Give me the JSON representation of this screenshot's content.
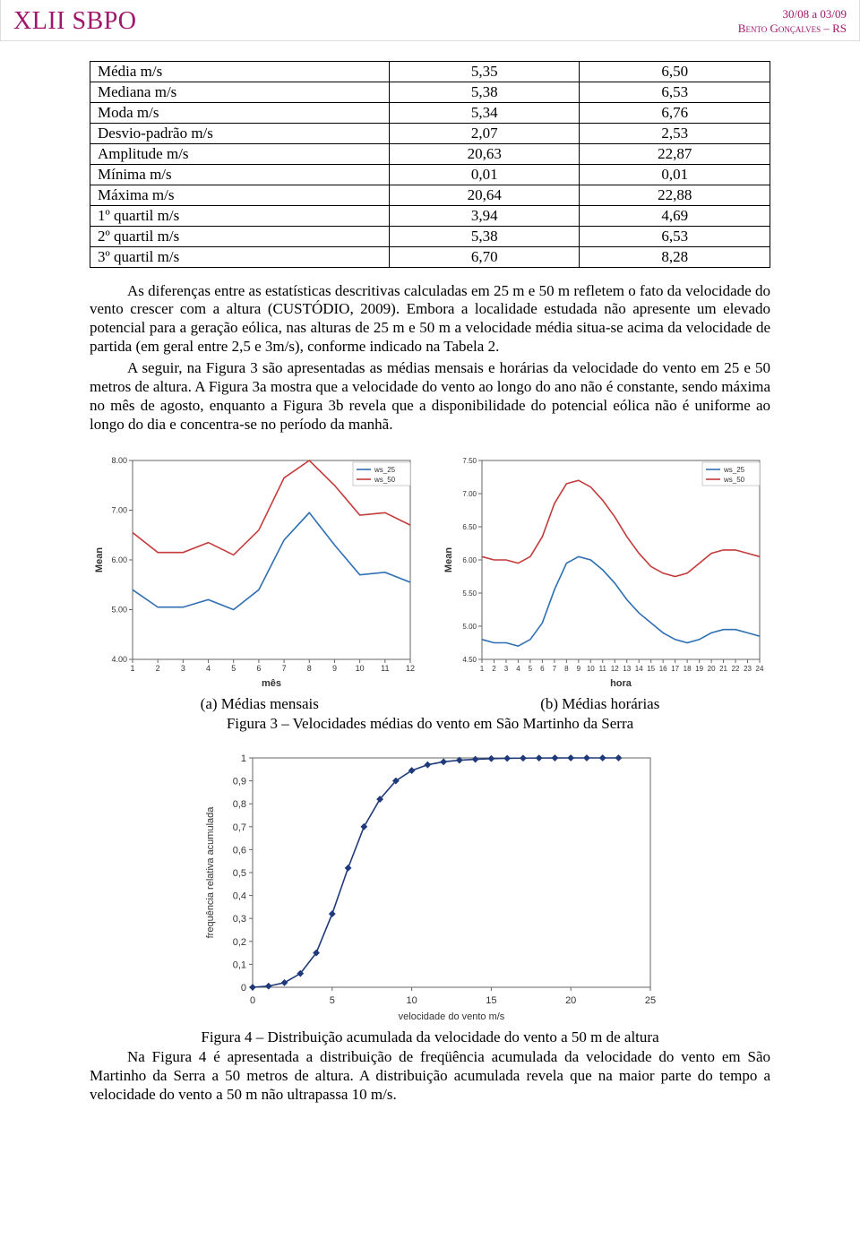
{
  "header": {
    "logo": "XLII SBPO",
    "dates": "30/08 a 03/09",
    "location": "Bento Gonçalves – RS"
  },
  "table": {
    "rows": [
      {
        "label": "Média m/s",
        "v1": "5,35",
        "v2": "6,50"
      },
      {
        "label": "Mediana m/s",
        "v1": "5,38",
        "v2": "6,53"
      },
      {
        "label": "Moda m/s",
        "v1": "5,34",
        "v2": "6,76"
      },
      {
        "label": "Desvio-padrão m/s",
        "v1": "2,07",
        "v2": "2,53"
      },
      {
        "label": "Amplitude m/s",
        "v1": "20,63",
        "v2": "22,87"
      },
      {
        "label": "Mínima m/s",
        "v1": "0,01",
        "v2": "0,01"
      },
      {
        "label": "Máxima m/s",
        "v1": "20,64",
        "v2": "22,88"
      },
      {
        "label": "1º quartil m/s",
        "v1": "3,94",
        "v2": "4,69"
      },
      {
        "label": "2º quartil m/s",
        "v1": "5,38",
        "v2": "6,53"
      },
      {
        "label": "3º quartil m/s",
        "v1": "6,70",
        "v2": "8,28"
      }
    ]
  },
  "paragraphs": {
    "p1": "As diferenças entre as estatísticas descritivas calculadas em 25 m e 50 m refletem o fato da velocidade do vento crescer com a altura (CUSTÓDIO, 2009). Embora a localidade estudada não apresente um elevado potencial para a geração eólica, nas alturas de 25 m e 50 m a velocidade média situa-se acima da velocidade de partida (em geral entre 2,5 e 3m/s), conforme indicado na Tabela 2.",
    "p2": "A seguir, na Figura 3 são apresentadas as médias mensais e horárias da velocidade do vento em 25 e 50 metros de altura. A Figura 3a mostra que a velocidade do vento ao longo do ano não é constante, sendo máxima no mês de agosto, enquanto a Figura 3b revela que a disponibilidade do potencial eólica não é uniforme ao longo do dia e concentra-se no período da manhã."
  },
  "chart_a": {
    "type": "line",
    "legend": [
      "ws_25",
      "ws_50"
    ],
    "xlabel": "mês",
    "ylabel": "Mean",
    "xlim": [
      1,
      12
    ],
    "ylim": [
      4.0,
      8.0
    ],
    "yticks": [
      4.0,
      5.0,
      6.0,
      7.0,
      8.0
    ],
    "xticks": [
      1,
      2,
      3,
      4,
      5,
      6,
      7,
      8,
      9,
      10,
      11,
      12
    ],
    "series1_color": "#2e6fb3",
    "series2_color": "#c43b3b",
    "background": "#ffffff",
    "border_color": "#666666",
    "axis_font": 9,
    "series1": [
      5.4,
      5.05,
      5.05,
      5.2,
      5.0,
      5.4,
      6.4,
      6.95,
      6.3,
      5.7,
      5.75,
      5.55
    ],
    "series2": [
      6.55,
      6.15,
      6.15,
      6.35,
      6.1,
      6.6,
      7.65,
      8.0,
      7.5,
      6.9,
      6.95,
      6.7
    ]
  },
  "chart_b": {
    "type": "line",
    "legend": [
      "ws_25",
      "ws_50"
    ],
    "xlabel": "hora",
    "ylabel": "Mean",
    "xlim": [
      1,
      24
    ],
    "ylim": [
      4.5,
      7.5
    ],
    "yticks": [
      4.5,
      5.0,
      5.5,
      6.0,
      6.5,
      7.0,
      7.5
    ],
    "xticks": [
      1,
      2,
      3,
      4,
      5,
      6,
      7,
      8,
      9,
      10,
      11,
      12,
      13,
      14,
      15,
      16,
      17,
      18,
      19,
      20,
      21,
      22,
      23,
      24
    ],
    "series1_color": "#2e6fb3",
    "series2_color": "#c43b3b",
    "background": "#ffffff",
    "border_color": "#666666",
    "axis_font": 8,
    "series1": [
      4.8,
      4.75,
      4.75,
      4.7,
      4.8,
      5.05,
      5.55,
      5.95,
      6.05,
      6.0,
      5.85,
      5.65,
      5.4,
      5.2,
      5.05,
      4.9,
      4.8,
      4.75,
      4.8,
      4.9,
      4.95,
      4.95,
      4.9,
      4.85
    ],
    "series2": [
      6.05,
      6.0,
      6.0,
      5.95,
      6.05,
      6.35,
      6.85,
      7.15,
      7.2,
      7.1,
      6.9,
      6.65,
      6.35,
      6.1,
      5.9,
      5.8,
      5.75,
      5.8,
      5.95,
      6.1,
      6.15,
      6.15,
      6.1,
      6.05
    ]
  },
  "captions": {
    "a": "(a) Médias mensais",
    "b": "(b) Médias horárias",
    "fig3": "Figura 3 – Velocidades médias do vento em São Martinho da Serra"
  },
  "chart4": {
    "type": "line",
    "xlabel": "velocidade do vento m/s",
    "ylabel": "frequência relativa acumulada",
    "xlim": [
      0,
      25
    ],
    "ylim": [
      0,
      1
    ],
    "xticks": [
      0,
      5,
      10,
      15,
      20,
      25
    ],
    "yticks": [
      0,
      0.1,
      0.2,
      0.3,
      0.4,
      0.5,
      0.6,
      0.7,
      0.8,
      0.9,
      1
    ],
    "ytick_labels": [
      "0",
      "0,1",
      "0,2",
      "0,3",
      "0,4",
      "0,5",
      "0,6",
      "0,7",
      "0,8",
      "0,9",
      "1"
    ],
    "line_color": "#1f3a7a",
    "marker": "diamond",
    "background": "#ffffff",
    "border_color": "#666666",
    "axis_font": 11,
    "x": [
      0,
      1,
      2,
      3,
      4,
      5,
      6,
      7,
      8,
      9,
      10,
      11,
      12,
      13,
      14,
      15,
      16,
      17,
      18,
      19,
      20,
      21,
      22,
      23
    ],
    "y": [
      0.0,
      0.005,
      0.02,
      0.06,
      0.15,
      0.32,
      0.52,
      0.7,
      0.82,
      0.9,
      0.945,
      0.97,
      0.983,
      0.99,
      0.994,
      0.997,
      0.998,
      0.999,
      0.9995,
      0.9998,
      1.0,
      1.0,
      1.0,
      1.0
    ]
  },
  "fig4_caption": "Figura 4 – Distribuição acumulada da velocidade do vento a 50 m de altura",
  "footer_para": "Na Figura 4 é apresentada a distribuição de freqüência acumulada da velocidade do vento em São Martinho da Serra a 50 metros de altura. A distribuição acumulada revela que na maior parte do tempo a velocidade do vento a 50 m não ultrapassa 10 m/s."
}
